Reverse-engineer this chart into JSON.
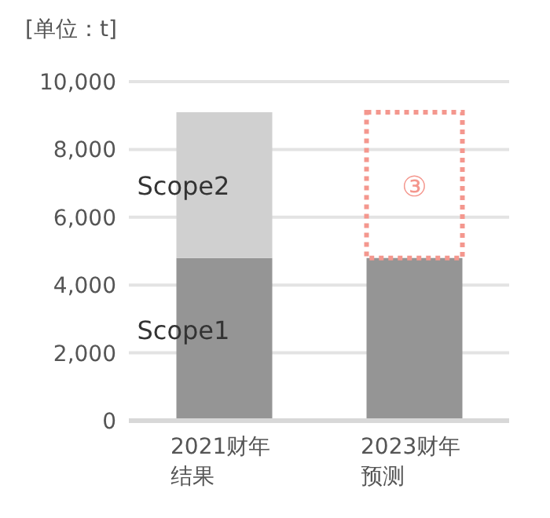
{
  "chart_data": {
    "type": "bar",
    "stacked": true,
    "ylabel": "[单位：t]",
    "categories": [
      "2021财年结果",
      "2023财年预测"
    ],
    "series": [
      {
        "name": "Scope1",
        "color": "#959595",
        "values": [
          4800,
          4800
        ]
      },
      {
        "name": "Scope2",
        "color": "#d0d0d0",
        "values": [
          4300,
          null
        ]
      },
      {
        "name": "③",
        "color": "#f4978e",
        "values": [
          null,
          4300
        ],
        "line_style": "dotted"
      }
    ],
    "ylim": [
      0,
      10000
    ],
    "yticks": [
      0,
      {
        "value": 2000,
        "label": "2,000"
      },
      {
        "value": 4000,
        "label": "4,000"
      },
      {
        "value": 6000,
        "label": "6,000"
      },
      {
        "value": 8000,
        "label": "8,000"
      },
      {
        "value": 10000,
        "label": "10,000"
      }
    ],
    "grid": "y"
  }
}
